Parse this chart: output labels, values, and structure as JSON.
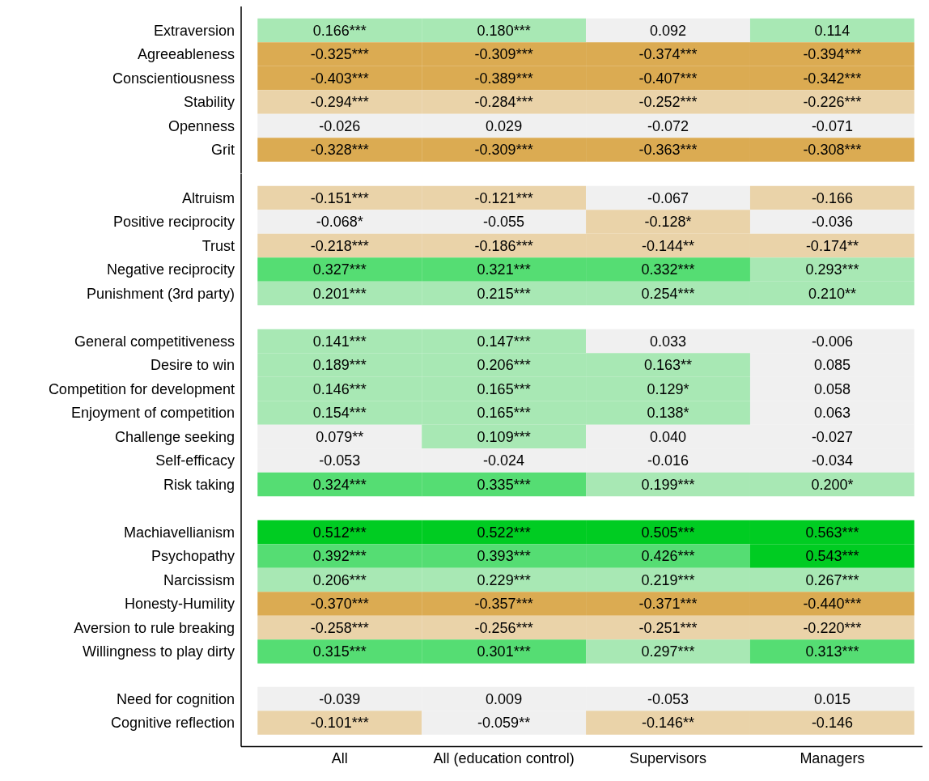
{
  "chart_data": [
    {
      "type": "heatmap",
      "tick_labels": "y",
      "categories": [
        null,
        null,
        null,
        null
      ],
      "y_categories": [
        "Extraversion",
        "Agreeableness",
        "Conscientiousness",
        "Stability",
        "Openness",
        "Grit"
      ],
      "cells": [
        [
          0.166,
          0.18,
          0.092,
          0.114
        ],
        [
          -0.325,
          -0.309,
          -0.374,
          -0.394
        ],
        [
          -0.403,
          -0.389,
          -0.407,
          -0.342
        ],
        [
          -0.294,
          -0.284,
          -0.252,
          -0.226
        ],
        [
          -0.026,
          0.029,
          -0.072,
          -0.071
        ],
        [
          -0.328,
          -0.309,
          -0.363,
          -0.308
        ]
      ],
      "cell_labels": [
        [
          "0.166***",
          "0.180***",
          "0.092",
          "0.114"
        ],
        [
          "-0.325***",
          "-0.309***",
          "-0.374***",
          "-0.394***"
        ],
        [
          "-0.403***",
          "-0.389***",
          "-0.407***",
          "-0.342***"
        ],
        [
          "-0.294***",
          "-0.284***",
          "-0.252***",
          "-0.226***"
        ],
        [
          "-0.026",
          "0.029",
          "-0.072",
          "-0.071"
        ],
        [
          "-0.328***",
          "-0.309***",
          "-0.363***",
          "-0.308***"
        ]
      ],
      "colors": [
        [
          "#a8e8b4",
          "#a8e8b4",
          "#f0f0f0",
          "#a8e8b4"
        ],
        [
          "#dbab52",
          "#dbab52",
          "#dbab52",
          "#dbab52"
        ],
        [
          "#dbab52",
          "#dbab52",
          "#dbab52",
          "#dbab52"
        ],
        [
          "#ead3a9",
          "#ead3a9",
          "#ead3a9",
          "#ead3a9"
        ],
        [
          "#f0f0f0",
          "#f0f0f0",
          "#f0f0f0",
          "#f0f0f0"
        ],
        [
          "#dbab52",
          "#dbab52",
          "#dbab52",
          "#dbab52"
        ]
      ]
    },
    {
      "type": "heatmap",
      "tick_labels": "y",
      "categories": [
        null,
        null,
        null,
        null
      ],
      "y_categories": [
        "Altruism",
        "Positive reciprocity",
        "Trust",
        "Negative reciprocity",
        "Punishment (3rd party)"
      ],
      "cells": [
        [
          -0.151,
          -0.121,
          -0.067,
          -0.166
        ],
        [
          -0.068,
          -0.055,
          -0.128,
          -0.036
        ],
        [
          -0.218,
          -0.186,
          -0.144,
          -0.174
        ],
        [
          0.327,
          0.321,
          0.332,
          0.293
        ],
        [
          0.201,
          0.215,
          0.254,
          0.21
        ]
      ],
      "cell_labels": [
        [
          "-0.151***",
          "-0.121***",
          "-0.067",
          "-0.166"
        ],
        [
          "-0.068*",
          "-0.055",
          "-0.128*",
          "-0.036"
        ],
        [
          "-0.218***",
          "-0.186***",
          "-0.144**",
          "-0.174**"
        ],
        [
          "0.327***",
          "0.321***",
          "0.332***",
          "0.293***"
        ],
        [
          "0.201***",
          "0.215***",
          "0.254***",
          "0.210**"
        ]
      ],
      "colors": [
        [
          "#ead3a9",
          "#ead3a9",
          "#f0f0f0",
          "#ead3a9"
        ],
        [
          "#f0f0f0",
          "#f0f0f0",
          "#ead3a9",
          "#f0f0f0"
        ],
        [
          "#ead3a9",
          "#ead3a9",
          "#ead3a9",
          "#ead3a9"
        ],
        [
          "#55dd73",
          "#55dd73",
          "#55dd73",
          "#a8e8b4"
        ],
        [
          "#a8e8b4",
          "#a8e8b4",
          "#a8e8b4",
          "#a8e8b4"
        ]
      ]
    },
    {
      "type": "heatmap",
      "tick_labels": "y",
      "categories": [
        null,
        null,
        null,
        null
      ],
      "y_categories": [
        "General competitiveness",
        "Desire to win",
        "Competition for development",
        "Enjoyment of competition",
        "Challenge seeking",
        "Self-efficacy",
        "Risk taking"
      ],
      "cells": [
        [
          0.141,
          0.147,
          0.033,
          -0.006
        ],
        [
          0.189,
          0.206,
          0.163,
          0.085
        ],
        [
          0.146,
          0.165,
          0.129,
          0.058
        ],
        [
          0.154,
          0.165,
          0.138,
          0.063
        ],
        [
          0.079,
          0.109,
          0.04,
          -0.027
        ],
        [
          -0.053,
          -0.024,
          -0.016,
          -0.034
        ],
        [
          0.324,
          0.335,
          0.199,
          0.2
        ]
      ],
      "cell_labels": [
        [
          "0.141***",
          "0.147***",
          "0.033",
          "-0.006"
        ],
        [
          "0.189***",
          "0.206***",
          "0.163**",
          "0.085"
        ],
        [
          "0.146***",
          "0.165***",
          "0.129*",
          "0.058"
        ],
        [
          "0.154***",
          "0.165***",
          "0.138*",
          "0.063"
        ],
        [
          "0.079**",
          "0.109***",
          "0.040",
          "-0.027"
        ],
        [
          "-0.053",
          "-0.024",
          "-0.016",
          "-0.034"
        ],
        [
          "0.324***",
          "0.335***",
          "0.199***",
          "0.200*"
        ]
      ],
      "colors": [
        [
          "#a8e8b4",
          "#a8e8b4",
          "#f0f0f0",
          "#f0f0f0"
        ],
        [
          "#a8e8b4",
          "#a8e8b4",
          "#a8e8b4",
          "#f0f0f0"
        ],
        [
          "#a8e8b4",
          "#a8e8b4",
          "#a8e8b4",
          "#f0f0f0"
        ],
        [
          "#a8e8b4",
          "#a8e8b4",
          "#a8e8b4",
          "#f0f0f0"
        ],
        [
          "#f0f0f0",
          "#a8e8b4",
          "#f0f0f0",
          "#f0f0f0"
        ],
        [
          "#f0f0f0",
          "#f0f0f0",
          "#f0f0f0",
          "#f0f0f0"
        ],
        [
          "#55dd73",
          "#55dd73",
          "#a8e8b4",
          "#a8e8b4"
        ]
      ]
    },
    {
      "type": "heatmap",
      "tick_labels": "y",
      "categories": [
        null,
        null,
        null,
        null
      ],
      "y_categories": [
        "Machiavellianism",
        "Psychopathy",
        "Narcissism",
        "Honesty-Humility",
        "Aversion to rule breaking",
        "Willingness to play dirty"
      ],
      "cells": [
        [
          0.512,
          0.522,
          0.505,
          0.563
        ],
        [
          0.392,
          0.393,
          0.426,
          0.543
        ],
        [
          0.206,
          0.229,
          0.219,
          0.267
        ],
        [
          -0.37,
          -0.357,
          -0.371,
          -0.44
        ],
        [
          -0.258,
          -0.256,
          -0.251,
          -0.22
        ],
        [
          0.315,
          0.301,
          0.297,
          0.313
        ]
      ],
      "cell_labels": [
        [
          "0.512***",
          "0.522***",
          "0.505***",
          "0.563***"
        ],
        [
          "0.392***",
          "0.393***",
          "0.426***",
          "0.543***"
        ],
        [
          "0.206***",
          "0.229***",
          "0.219***",
          "0.267***"
        ],
        [
          "-0.370***",
          "-0.357***",
          "-0.371***",
          "-0.440***"
        ],
        [
          "-0.258***",
          "-0.256***",
          "-0.251***",
          "-0.220***"
        ],
        [
          "0.315***",
          "0.301***",
          "0.297***",
          "0.313***"
        ]
      ],
      "colors": [
        [
          "#00cc22",
          "#00cc22",
          "#00cc22",
          "#00cc22"
        ],
        [
          "#55dd73",
          "#55dd73",
          "#55dd73",
          "#00cc22"
        ],
        [
          "#a8e8b4",
          "#a8e8b4",
          "#a8e8b4",
          "#a8e8b4"
        ],
        [
          "#dbab52",
          "#dbab52",
          "#dbab52",
          "#dbab52"
        ],
        [
          "#ead3a9",
          "#ead3a9",
          "#ead3a9",
          "#ead3a9"
        ],
        [
          "#55dd73",
          "#55dd73",
          "#a8e8b4",
          "#55dd73"
        ]
      ]
    },
    {
      "type": "heatmap",
      "categories": [
        "All",
        "All (education control)",
        "Supervisors",
        "Managers"
      ],
      "y_categories": [
        "Need for cognition",
        "Cognitive reflection"
      ],
      "cells": [
        [
          -0.039,
          0.009,
          -0.053,
          0.015
        ],
        [
          -0.101,
          -0.059,
          -0.146,
          -0.146
        ]
      ],
      "cell_labels": [
        [
          "-0.039",
          "0.009",
          "-0.053",
          "0.015"
        ],
        [
          "-0.101***",
          "-0.059**",
          "-0.146**",
          "-0.146"
        ]
      ],
      "colors": [
        [
          "#f0f0f0",
          "#f0f0f0",
          "#f0f0f0",
          "#f0f0f0"
        ],
        [
          "#ead3a9",
          "#f0f0f0",
          "#ead3a9",
          "#ead3a9"
        ]
      ]
    }
  ]
}
